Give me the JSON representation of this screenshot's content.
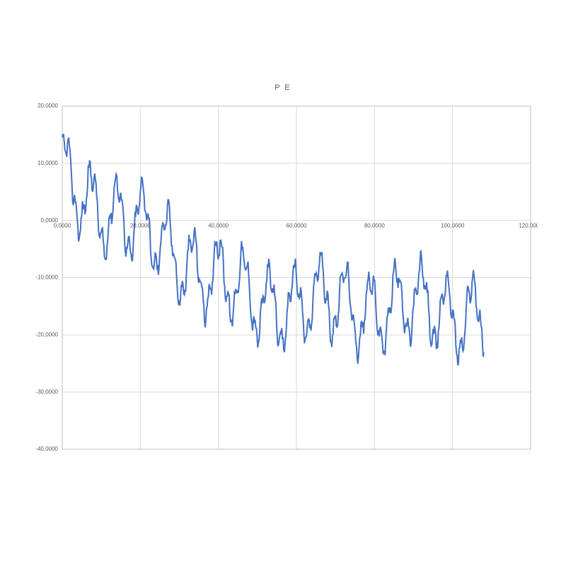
{
  "chart": {
    "type": "line",
    "title": "P E",
    "title_fontsize": 11,
    "title_color": "#595959",
    "background_color": "#ffffff",
    "plot_background_color": "#ffffff",
    "grid_color": "#d9d9d9",
    "border_color": "#bfbfbf",
    "tick_label_color": "#595959",
    "tick_label_fontsize": 8,
    "xlim": [
      0,
      120
    ],
    "ylim": [
      -40,
      20
    ],
    "xtick_step": 20,
    "ytick_step": 10,
    "xtick_labels": [
      "0,0000",
      "20,0000",
      "40,0000",
      "60,0000",
      "80,0000",
      "100,0000",
      "120,0000"
    ],
    "ytick_labels": [
      "-40,0000",
      "-30,0000",
      "-20,0000",
      "-10,0000",
      "0,0000",
      "10,0000",
      "20,0000"
    ],
    "ytick_values": [
      -40,
      -30,
      -20,
      -10,
      0,
      10,
      20
    ],
    "xtick_values": [
      0,
      20,
      40,
      60,
      80,
      100,
      120
    ],
    "series": {
      "name": "PE",
      "color": "#4472c4",
      "line_width": 2.0,
      "data_x_max": 108,
      "trend": "oscillating-descending",
      "trend_start_y": 7,
      "trend_end_y": -16,
      "trend_breakpoint_x": 48,
      "trend_breakpoint_y": -14,
      "osc_primary_period": 6.5,
      "osc_primary_amplitude": 6,
      "osc_secondary_period": 1.7,
      "osc_secondary_amplitude": 2.2,
      "noise_amplitude": 1.0,
      "y_min_observed": -26,
      "y_max_observed": 16,
      "sample_points": 650
    }
  }
}
